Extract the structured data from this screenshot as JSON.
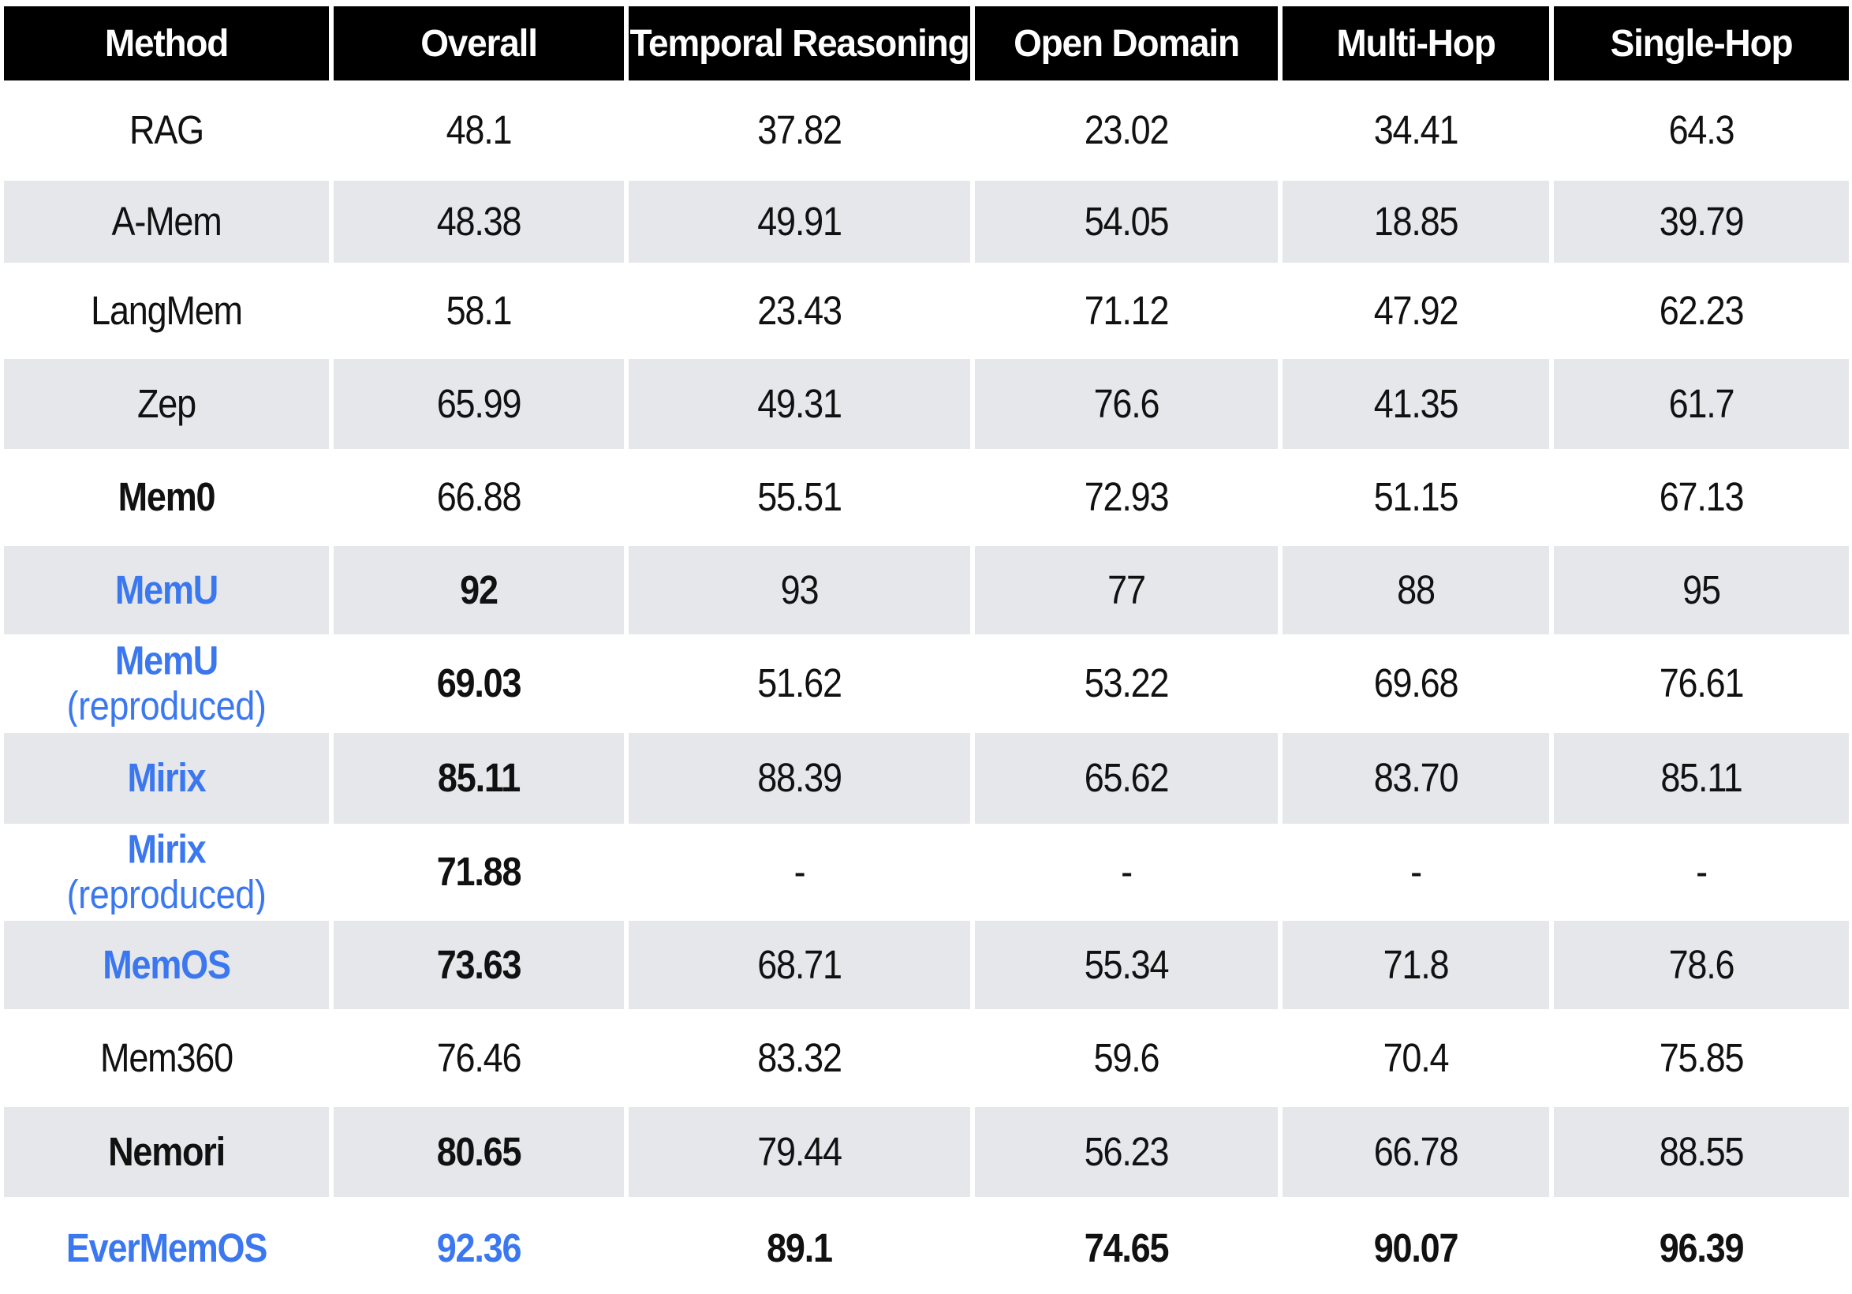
{
  "colors": {
    "header_bg": "#000000",
    "header_text": "#ffffff",
    "band_bg": "#e5e7eb",
    "accent_blue": "#3b78f0",
    "text": "#111111"
  },
  "table": {
    "columns": [
      "Method",
      "Overall",
      "Temporal Reasoning",
      "Open Domain",
      "Multi-Hop",
      "Single-Hop"
    ],
    "rows": [
      {
        "method": "RAG",
        "sub": "",
        "method_bold": false,
        "method_blue": false,
        "shaded": false,
        "values": [
          "48.1",
          "37.82",
          "23.02",
          "34.41",
          "64.3"
        ],
        "value_bold": [
          false,
          false,
          false,
          false,
          false
        ],
        "value_blue": [
          false,
          false,
          false,
          false,
          false
        ]
      },
      {
        "method": "A-Mem",
        "sub": "",
        "method_bold": false,
        "method_blue": false,
        "shaded": true,
        "values": [
          "48.38",
          "49.91",
          "54.05",
          "18.85",
          "39.79"
        ],
        "value_bold": [
          false,
          false,
          false,
          false,
          false
        ],
        "value_blue": [
          false,
          false,
          false,
          false,
          false
        ]
      },
      {
        "method": "LangMem",
        "sub": "",
        "method_bold": false,
        "method_blue": false,
        "shaded": false,
        "values": [
          "58.1",
          "23.43",
          "71.12",
          "47.92",
          "62.23"
        ],
        "value_bold": [
          false,
          false,
          false,
          false,
          false
        ],
        "value_blue": [
          false,
          false,
          false,
          false,
          false
        ]
      },
      {
        "method": "Zep",
        "sub": "",
        "method_bold": false,
        "method_blue": false,
        "shaded": true,
        "values": [
          "65.99",
          "49.31",
          "76.6",
          "41.35",
          "61.7"
        ],
        "value_bold": [
          false,
          false,
          false,
          false,
          false
        ],
        "value_blue": [
          false,
          false,
          false,
          false,
          false
        ]
      },
      {
        "method": "Mem0",
        "sub": "",
        "method_bold": true,
        "method_blue": false,
        "shaded": false,
        "values": [
          "66.88",
          "55.51",
          "72.93",
          "51.15",
          "67.13"
        ],
        "value_bold": [
          false,
          false,
          false,
          false,
          false
        ],
        "value_blue": [
          false,
          false,
          false,
          false,
          false
        ]
      },
      {
        "method": "MemU",
        "sub": "",
        "method_bold": true,
        "method_blue": true,
        "shaded": true,
        "values": [
          "92",
          "93",
          "77",
          "88",
          "95"
        ],
        "value_bold": [
          true,
          false,
          false,
          false,
          false
        ],
        "value_blue": [
          false,
          false,
          false,
          false,
          false
        ]
      },
      {
        "method": "MemU",
        "sub": "(reproduced)",
        "method_bold": true,
        "method_blue": true,
        "shaded": false,
        "values": [
          "69.03",
          "51.62",
          "53.22",
          "69.68",
          "76.61"
        ],
        "value_bold": [
          true,
          false,
          false,
          false,
          false
        ],
        "value_blue": [
          false,
          false,
          false,
          false,
          false
        ]
      },
      {
        "method": "Mirix",
        "sub": "",
        "method_bold": true,
        "method_blue": true,
        "shaded": true,
        "values": [
          "85.11",
          "88.39",
          "65.62",
          "83.70",
          "85.11"
        ],
        "value_bold": [
          true,
          false,
          false,
          false,
          false
        ],
        "value_blue": [
          false,
          false,
          false,
          false,
          false
        ]
      },
      {
        "method": "Mirix",
        "sub": "(reproduced)",
        "method_bold": true,
        "method_blue": true,
        "shaded": false,
        "values": [
          "71.88",
          "-",
          "-",
          "-",
          "-"
        ],
        "value_bold": [
          true,
          false,
          false,
          false,
          false
        ],
        "value_blue": [
          false,
          false,
          false,
          false,
          false
        ]
      },
      {
        "method": "MemOS",
        "sub": "",
        "method_bold": true,
        "method_blue": true,
        "shaded": true,
        "values": [
          "73.63",
          "68.71",
          "55.34",
          "71.8",
          "78.6"
        ],
        "value_bold": [
          true,
          false,
          false,
          false,
          false
        ],
        "value_blue": [
          false,
          false,
          false,
          false,
          false
        ]
      },
      {
        "method": "Mem360",
        "sub": "",
        "method_bold": false,
        "method_blue": false,
        "shaded": false,
        "values": [
          "76.46",
          "83.32",
          "59.6",
          "70.4",
          "75.85"
        ],
        "value_bold": [
          false,
          false,
          false,
          false,
          false
        ],
        "value_blue": [
          false,
          false,
          false,
          false,
          false
        ]
      },
      {
        "method": "Nemori",
        "sub": "",
        "method_bold": true,
        "method_blue": false,
        "shaded": true,
        "values": [
          "80.65",
          "79.44",
          "56.23",
          "66.78",
          "88.55"
        ],
        "value_bold": [
          true,
          false,
          false,
          false,
          false
        ],
        "value_blue": [
          false,
          false,
          false,
          false,
          false
        ]
      },
      {
        "method": "EverMemOS",
        "sub": "",
        "method_bold": true,
        "method_blue": true,
        "shaded": false,
        "values": [
          "92.36",
          "89.1",
          "74.65",
          "90.07",
          "96.39"
        ],
        "value_bold": [
          true,
          true,
          true,
          true,
          true
        ],
        "value_blue": [
          true,
          false,
          false,
          false,
          false
        ]
      }
    ]
  },
  "chart_data": {
    "type": "table",
    "columns": [
      "Method",
      "Overall",
      "Temporal Reasoning",
      "Open Domain",
      "Multi-Hop",
      "Single-Hop"
    ],
    "rows": [
      [
        "RAG",
        48.1,
        37.82,
        23.02,
        34.41,
        64.3
      ],
      [
        "A-Mem",
        48.38,
        49.91,
        54.05,
        18.85,
        39.79
      ],
      [
        "LangMem",
        58.1,
        23.43,
        71.12,
        47.92,
        62.23
      ],
      [
        "Zep",
        65.99,
        49.31,
        76.6,
        41.35,
        61.7
      ],
      [
        "Mem0",
        66.88,
        55.51,
        72.93,
        51.15,
        67.13
      ],
      [
        "MemU",
        92,
        93,
        77,
        88,
        95
      ],
      [
        "MemU (reproduced)",
        69.03,
        51.62,
        53.22,
        69.68,
        76.61
      ],
      [
        "Mirix",
        85.11,
        88.39,
        65.62,
        83.7,
        85.11
      ],
      [
        "Mirix (reproduced)",
        71.88,
        null,
        null,
        null,
        null
      ],
      [
        "MemOS",
        73.63,
        68.71,
        55.34,
        71.8,
        78.6
      ],
      [
        "Mem360",
        76.46,
        83.32,
        59.6,
        70.4,
        75.85
      ],
      [
        "Nemori",
        80.65,
        79.44,
        56.23,
        66.78,
        88.55
      ],
      [
        "EverMemOS",
        92.36,
        89.1,
        74.65,
        90.07,
        96.39
      ]
    ]
  }
}
